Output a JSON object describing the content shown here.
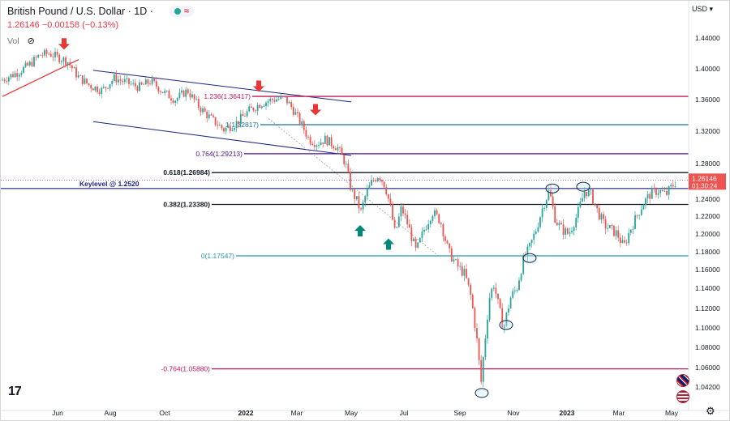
{
  "header": {
    "title": "British Pound / U.S. Dollar · 1D ·",
    "price": "1.26146",
    "change": "−0.00158 (−0.13%)",
    "vol_label": "Vol"
  },
  "currency": "USD",
  "colors": {
    "up": "#26a69a",
    "down": "#ef5350",
    "line_red": "#e53935"
  },
  "chart_data": {
    "type": "candlestick",
    "title": "British Pound / U.S. Dollar · 1D",
    "ylim": [
      1.02,
      1.46
    ],
    "y_ticks": [
      "1.44000",
      "1.40000",
      "1.36000",
      "1.32000",
      "1.28000",
      "1.24000",
      "1.22000",
      "1.20000",
      "1.18000",
      "1.16000",
      "1.14000",
      "1.12000",
      "1.10000",
      "1.08000",
      "1.06000",
      "1.04200"
    ],
    "x_ticks": [
      "Jun",
      "Aug",
      "Oct",
      "2022",
      "Mar",
      "May",
      "Jul",
      "Sep",
      "Nov",
      "2023",
      "Mar",
      "May"
    ],
    "current_price_label": "1.26146",
    "countdown_label": "01:30:24",
    "fib_levels": [
      {
        "label": "1.236(1.36417)",
        "value": 1.36417,
        "color": "#c2185b"
      },
      {
        "label": "1(1.32817)",
        "value": 1.32817,
        "color": "#1e6fa0"
      },
      {
        "label": "0.764(1.29213)",
        "value": 1.29213,
        "color": "#4a148c"
      },
      {
        "label": "0.618(1.26984)",
        "value": 1.26984,
        "color": "#131722"
      },
      {
        "label": "0.382(1.23380)",
        "value": 1.2338,
        "color": "#131722"
      },
      {
        "label": "0(1.17547)",
        "value": 1.17547,
        "color": "#2196b0"
      },
      {
        "label": "-0.764(1.05880)",
        "value": 1.0588,
        "color": "#c2185b"
      }
    ],
    "keylevel": {
      "label": "Keylevel @ 1.2520",
      "value": 1.252
    },
    "path_points": [
      [
        0,
        1.385
      ],
      [
        20,
        1.395
      ],
      [
        35,
        1.405
      ],
      [
        48,
        1.418
      ],
      [
        60,
        1.42
      ],
      [
        70,
        1.415
      ],
      [
        82,
        1.41
      ],
      [
        95,
        1.39
      ],
      [
        110,
        1.378
      ],
      [
        125,
        1.372
      ],
      [
        140,
        1.388
      ],
      [
        155,
        1.382
      ],
      [
        170,
        1.376
      ],
      [
        185,
        1.384
      ],
      [
        200,
        1.37
      ],
      [
        215,
        1.36
      ],
      [
        230,
        1.372
      ],
      [
        245,
        1.35
      ],
      [
        260,
        1.335
      ],
      [
        275,
        1.322
      ],
      [
        290,
        1.33
      ],
      [
        305,
        1.345
      ],
      [
        320,
        1.355
      ],
      [
        335,
        1.36
      ],
      [
        350,
        1.362
      ],
      [
        360,
        1.348
      ],
      [
        370,
        1.33
      ],
      [
        380,
        1.31
      ],
      [
        390,
        1.305
      ],
      [
        400,
        1.31
      ],
      [
        415,
        1.3
      ],
      [
        425,
        1.28
      ],
      [
        432,
        1.25
      ],
      [
        438,
        1.24
      ],
      [
        444,
        1.225
      ],
      [
        450,
        1.245
      ],
      [
        458,
        1.26
      ],
      [
        466,
        1.268
      ],
      [
        474,
        1.255
      ],
      [
        480,
        1.232
      ],
      [
        486,
        1.2
      ],
      [
        494,
        1.23
      ],
      [
        502,
        1.21
      ],
      [
        512,
        1.18
      ],
      [
        522,
        1.205
      ],
      [
        532,
        1.225
      ],
      [
        542,
        1.215
      ],
      [
        552,
        1.18
      ],
      [
        562,
        1.165
      ],
      [
        572,
        1.155
      ],
      [
        580,
        1.13
      ],
      [
        586,
        1.095
      ],
      [
        592,
        1.045
      ],
      [
        596,
        1.08
      ],
      [
        602,
        1.13
      ],
      [
        608,
        1.145
      ],
      [
        614,
        1.12
      ],
      [
        620,
        1.1
      ],
      [
        628,
        1.13
      ],
      [
        636,
        1.14
      ],
      [
        644,
        1.17
      ],
      [
        652,
        1.185
      ],
      [
        660,
        1.205
      ],
      [
        668,
        1.23
      ],
      [
        676,
        1.25
      ],
      [
        684,
        1.215
      ],
      [
        692,
        1.205
      ],
      [
        700,
        1.2
      ],
      [
        710,
        1.22
      ],
      [
        720,
        1.25
      ],
      [
        728,
        1.245
      ],
      [
        736,
        1.225
      ],
      [
        744,
        1.21
      ],
      [
        752,
        1.205
      ],
      [
        760,
        1.2
      ],
      [
        768,
        1.185
      ],
      [
        776,
        1.205
      ],
      [
        784,
        1.22
      ],
      [
        792,
        1.235
      ],
      [
        800,
        1.245
      ],
      [
        810,
        1.25
      ],
      [
        820,
        1.245
      ],
      [
        828,
        1.255
      ],
      [
        834,
        1.262
      ]
    ],
    "arrows_down": [
      [
        78,
        1.425
      ],
      [
        318,
        1.37
      ],
      [
        388,
        1.34
      ]
    ],
    "arrows_up": [
      [
        443,
        1.21
      ],
      [
        478,
        1.195
      ]
    ],
    "ellipses": [
      [
        680,
        1.252
      ],
      [
        718,
        1.254
      ],
      [
        652,
        1.173
      ],
      [
        623,
        1.103
      ],
      [
        593,
        1.036
      ]
    ]
  }
}
